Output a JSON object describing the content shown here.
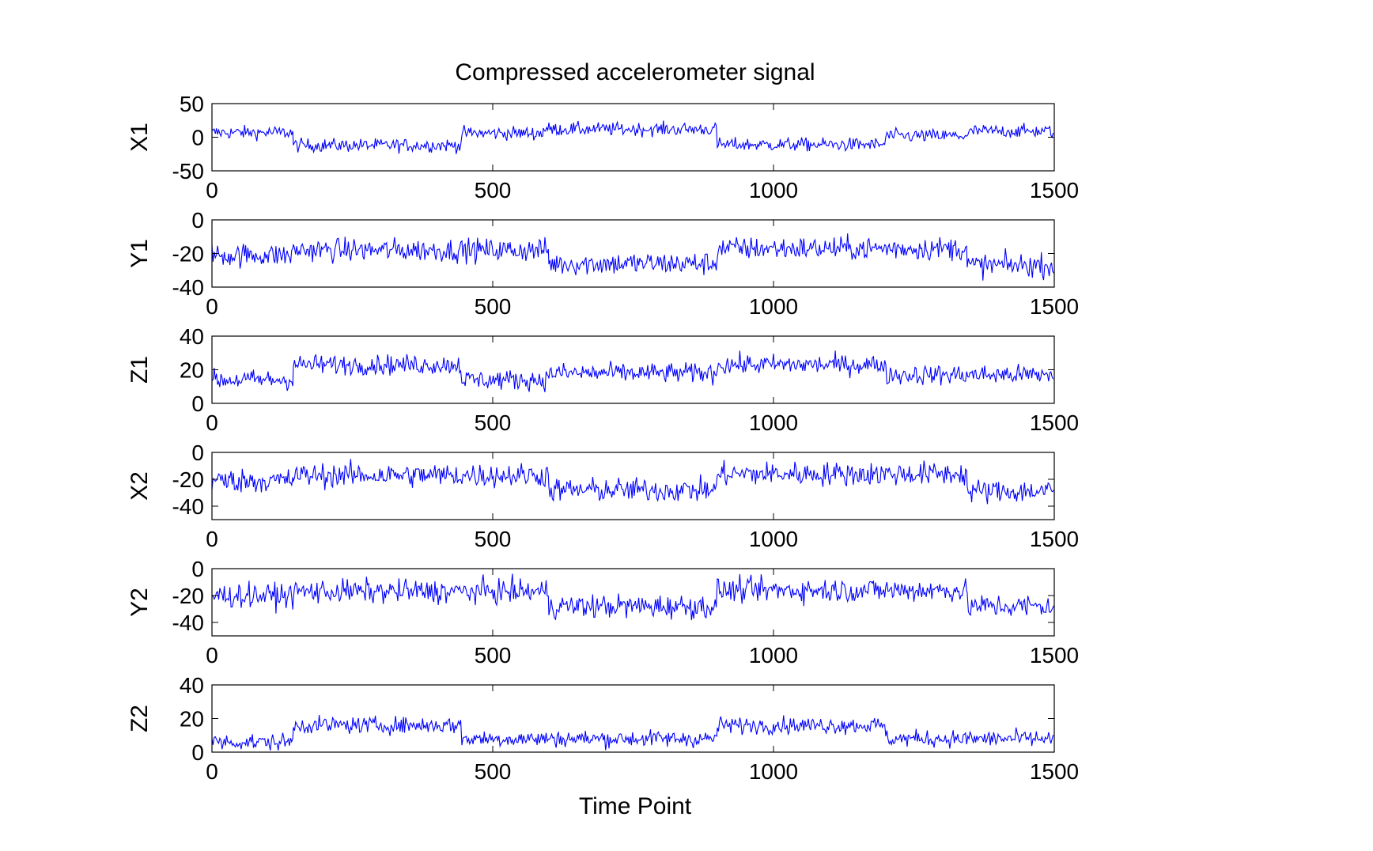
{
  "chart_data": {
    "type": "line",
    "title": "Compressed accelerometer signal",
    "xlabel": "Time Point",
    "line_color": "#0000ff",
    "axes_color": "#000000",
    "background": "#ffffff",
    "grid": false,
    "xlim": [
      0,
      1500
    ],
    "xticks": [
      0,
      500,
      1000,
      1500
    ],
    "subplots": [
      {
        "name": "X1",
        "ylabel": "X1",
        "ylim": [
          -50,
          50
        ],
        "yticks": [
          50,
          0,
          -50
        ],
        "noise": 5,
        "segments": [
          {
            "x": [
              0,
              145
            ],
            "mean": 7
          },
          {
            "x": [
              145,
              445
            ],
            "mean": -12
          },
          {
            "x": [
              445,
              590
            ],
            "mean": 6
          },
          {
            "x": [
              590,
              900
            ],
            "mean": 12
          },
          {
            "x": [
              900,
              1200
            ],
            "mean": -11
          },
          {
            "x": [
              1200,
              1350
            ],
            "mean": 2
          },
          {
            "x": [
              1350,
              1500
            ],
            "mean": 9
          }
        ]
      },
      {
        "name": "Y1",
        "ylabel": "Y1",
        "ylim": [
          -40,
          0
        ],
        "yticks": [
          0,
          -20,
          -40
        ],
        "noise": 3.5,
        "segments": [
          {
            "x": [
              0,
              145
            ],
            "mean": -21
          },
          {
            "x": [
              145,
              600
            ],
            "mean": -18
          },
          {
            "x": [
              600,
              900
            ],
            "mean": -26
          },
          {
            "x": [
              900,
              1345
            ],
            "mean": -17
          },
          {
            "x": [
              1345,
              1500
            ],
            "mean": -27
          }
        ]
      },
      {
        "name": "Z1",
        "ylabel": "Z1",
        "ylim": [
          0,
          40
        ],
        "yticks": [
          40,
          20,
          0
        ],
        "noise": 3,
        "segments": [
          {
            "x": [
              0,
              145
            ],
            "mean": 14
          },
          {
            "x": [
              145,
              445
            ],
            "mean": 23
          },
          {
            "x": [
              445,
              600
            ],
            "mean": 14
          },
          {
            "x": [
              600,
              900
            ],
            "mean": 18
          },
          {
            "x": [
              900,
              1200
            ],
            "mean": 23
          },
          {
            "x": [
              1200,
              1500
            ],
            "mean": 17
          }
        ]
      },
      {
        "name": "X2",
        "ylabel": "X2",
        "ylim": [
          -50,
          0
        ],
        "yticks": [
          0,
          -20,
          -40
        ],
        "noise": 4.5,
        "segments": [
          {
            "x": [
              0,
              145
            ],
            "mean": -21
          },
          {
            "x": [
              145,
              600
            ],
            "mean": -17
          },
          {
            "x": [
              600,
              900
            ],
            "mean": -28
          },
          {
            "x": [
              900,
              1345
            ],
            "mean": -16
          },
          {
            "x": [
              1345,
              1500
            ],
            "mean": -29
          }
        ]
      },
      {
        "name": "Y2",
        "ylabel": "Y2",
        "ylim": [
          -50,
          0
        ],
        "yticks": [
          0,
          -20,
          -40
        ],
        "noise": 4.5,
        "segments": [
          {
            "x": [
              0,
              145
            ],
            "mean": -20
          },
          {
            "x": [
              145,
              600
            ],
            "mean": -17
          },
          {
            "x": [
              600,
              900
            ],
            "mean": -28
          },
          {
            "x": [
              900,
              1345
            ],
            "mean": -16
          },
          {
            "x": [
              1345,
              1500
            ],
            "mean": -28
          }
        ]
      },
      {
        "name": "Z2",
        "ylabel": "Z2",
        "ylim": [
          0,
          40
        ],
        "yticks": [
          40,
          20,
          0
        ],
        "noise": 2.5,
        "segments": [
          {
            "x": [
              0,
              145
            ],
            "mean": 6
          },
          {
            "x": [
              145,
              445
            ],
            "mean": 16
          },
          {
            "x": [
              445,
              900
            ],
            "mean": 8
          },
          {
            "x": [
              900,
              1200
            ],
            "mean": 16
          },
          {
            "x": [
              1200,
              1500
            ],
            "mean": 8
          }
        ]
      }
    ]
  }
}
